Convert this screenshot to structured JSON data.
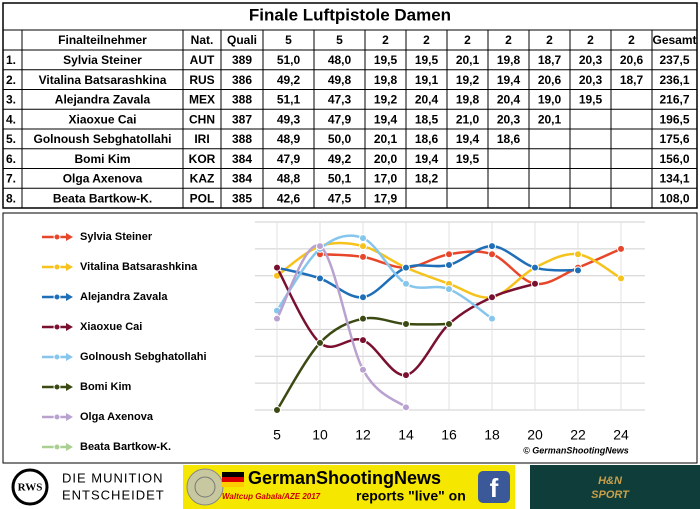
{
  "table": {
    "title": "Finale Luftpistole Damen",
    "header": [
      null,
      "Finalteilnehmer",
      "Nat.",
      "Quali",
      "5",
      "5",
      "2",
      "2",
      "2",
      "2",
      "2",
      "2",
      "2",
      "Gesamt"
    ],
    "rows": [
      [
        "1.",
        "Sylvia Steiner",
        "AUT",
        "389",
        "51,0",
        "48,0",
        "19,5",
        "19,5",
        "20,1",
        "19,8",
        "18,7",
        "20,3",
        "20,6",
        "237,5"
      ],
      [
        "2.",
        "Vitalina Batsarashkina",
        "RUS",
        "386",
        "49,2",
        "49,8",
        "19,8",
        "19,1",
        "19,2",
        "19,4",
        "20,6",
        "20,3",
        "18,7",
        "236,1"
      ],
      [
        "3.",
        "Alejandra Zavala",
        "MEX",
        "388",
        "51,1",
        "47,3",
        "19,2",
        "20,4",
        "19,8",
        "20,4",
        "19,0",
        "19,5",
        null,
        "216,7"
      ],
      [
        "4.",
        "Xiaoxue Cai",
        "CHN",
        "387",
        "49,3",
        "47,9",
        "19,4",
        "18,5",
        "21,0",
        "20,3",
        "20,1",
        null,
        null,
        "196,5"
      ],
      [
        "5.",
        "Golnoush Sebghatollahi",
        "IRI",
        "388",
        "48,9",
        "50,0",
        "20,1",
        "18,6",
        "19,4",
        "18,6",
        null,
        null,
        null,
        "175,6"
      ],
      [
        "6.",
        "Bomi Kim",
        "KOR",
        "384",
        "47,9",
        "49,2",
        "20,0",
        "19,4",
        "19,5",
        null,
        null,
        null,
        null,
        "156,0"
      ],
      [
        "7.",
        "Olga Axenova",
        "KAZ",
        "384",
        "48,8",
        "50,1",
        "17,0",
        "18,2",
        null,
        null,
        null,
        null,
        null,
        "134,1"
      ],
      [
        "8.",
        "Beata Bartkow-K.",
        "POL",
        "385",
        "42,6",
        "47,5",
        "17,9",
        null,
        null,
        null,
        null,
        null,
        null,
        "108,0"
      ]
    ]
  },
  "chart_data": {
    "type": "line",
    "categories": [
      "5",
      "10",
      "12",
      "14",
      "16",
      "18",
      "20",
      "22",
      "24"
    ],
    "ylim": [
      8,
      1
    ],
    "yticks": [
      1,
      2,
      3,
      4,
      5,
      6,
      7,
      8
    ],
    "grid": true,
    "legend": "left",
    "annotation": "© GermanShootingNews",
    "series": [
      {
        "name": "Sylvia Steiner",
        "color": "#e8462a",
        "values": [
          null,
          2.2,
          2.3,
          2.7,
          2.2,
          2.2,
          3.3,
          2.7,
          2.0
        ]
      },
      {
        "name": "Vitalina Batsarashkina",
        "color": "#f6c21c",
        "values": [
          3.0,
          1.9,
          1.9,
          2.7,
          3.3,
          3.8,
          2.7,
          2.2,
          3.1
        ]
      },
      {
        "name": "Alejandra Zavala",
        "color": "#1f6fb8",
        "values": [
          2.7,
          3.1,
          3.8,
          2.7,
          2.6,
          1.9,
          2.7,
          2.8,
          null
        ]
      },
      {
        "name": "Xiaoxue Cai",
        "color": "#7a1030",
        "values": [
          2.7,
          5.5,
          5.4,
          6.7,
          4.8,
          3.8,
          3.3,
          null,
          null
        ]
      },
      {
        "name": "Golnoush Sebghatollahi",
        "color": "#86c5ec",
        "values": [
          4.3,
          2.0,
          1.6,
          3.3,
          3.5,
          4.6,
          null,
          null,
          null
        ]
      },
      {
        "name": "Bomi Kim",
        "color": "#3b4a12",
        "values": [
          8.0,
          5.5,
          4.6,
          4.8,
          4.8,
          null,
          null,
          null,
          null
        ]
      },
      {
        "name": "Olga Axenova",
        "color": "#b9a2d0",
        "values": [
          4.6,
          1.9,
          6.5,
          7.9,
          null,
          null,
          null,
          null,
          null
        ]
      },
      {
        "name": "Beata Bartkow-K.",
        "color": "#a9cf92",
        "values": [
          null,
          null,
          null,
          null,
          null,
          null,
          null,
          null,
          null
        ]
      }
    ]
  },
  "banner": {
    "left_logo": "RWS",
    "left_line1": "DIE MUNITION",
    "left_line2": "ENTSCHEIDET",
    "site": "GermanShootingNews",
    "event": "Waltcup Gabala/AZE 2017",
    "reports": "reports \"live\" on",
    "facebook": "f",
    "right_line1": "H&N",
    "right_line2": "SPORT"
  }
}
